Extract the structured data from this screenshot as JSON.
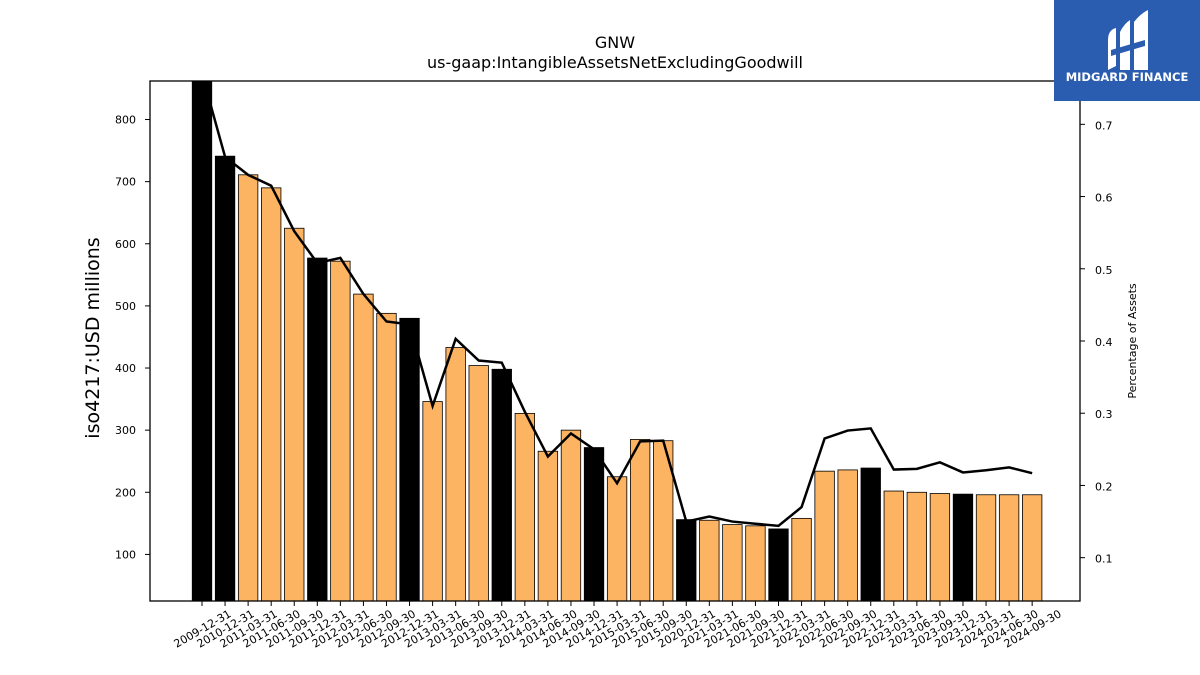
{
  "colors": {
    "annual_bar": "#000000",
    "quarter_bar": "#fdb462",
    "line": "#000000",
    "logo_bg": "#2a5db0",
    "logo_fg": "#ffffff"
  },
  "logo": {
    "text": "MIDGARD FINANCE",
    "icon": "midgard-mark-icon"
  },
  "chart_data": {
    "type": "bar",
    "title": "GNW",
    "subtitle": "us-gaap:IntangibleAssetsNetExcludingGoodwill",
    "ylabel": "iso4217:USD  millions",
    "y2label": "Percentage of Assets",
    "ylim": [
      25,
      862
    ],
    "y2lim": [
      0.04,
      0.76
    ],
    "yticks": [
      100,
      200,
      300,
      400,
      500,
      600,
      700,
      800
    ],
    "y2ticks": [
      0.1,
      0.2,
      0.3,
      0.4,
      0.5,
      0.6,
      0.7
    ],
    "grid": false,
    "categories": [
      "2009-12-31",
      "2010-12-31",
      "2011-03-31",
      "2011-06-30",
      "2011-09-30",
      "2011-12-31",
      "2012-03-31",
      "2012-06-30",
      "2012-09-30",
      "2012-12-31",
      "2013-03-31",
      "2013-06-30",
      "2013-09-30",
      "2013-12-31",
      "2014-03-31",
      "2014-06-30",
      "2014-09-30",
      "2014-12-31",
      "2015-03-31",
      "2015-06-30",
      "2015-09-30",
      "2020-12-31",
      "2021-03-31",
      "2021-06-30",
      "2021-09-30",
      "2021-12-31",
      "2022-03-31",
      "2022-06-30",
      "2022-09-30",
      "2022-12-31",
      "2023-03-31",
      "2023-06-30",
      "2023-09-30",
      "2023-12-31",
      "2024-03-31",
      "2024-06-30",
      "2024-09-30"
    ],
    "annual": [
      true,
      true,
      false,
      false,
      false,
      true,
      false,
      false,
      false,
      true,
      false,
      false,
      false,
      true,
      false,
      false,
      false,
      true,
      false,
      false,
      false,
      true,
      false,
      false,
      false,
      true,
      false,
      false,
      false,
      true,
      false,
      false,
      false,
      true,
      false,
      false,
      false
    ],
    "series": [
      {
        "name": "iso4217:USD  millions",
        "type": "bar",
        "values": [
          862,
          741,
          711,
          690,
          625,
          577,
          572,
          519,
          488,
          480,
          346,
          433,
          404,
          398,
          327,
          266,
          300,
          272,
          225,
          285,
          283,
          156,
          155,
          148,
          146,
          141,
          158,
          234,
          236,
          239,
          202,
          200,
          198,
          197,
          196,
          196,
          196
        ]
      },
      {
        "name": "Percentage of Assets",
        "type": "line",
        "values": [
          0.77,
          0.655,
          0.63,
          0.615,
          0.552,
          0.508,
          0.515,
          0.465,
          0.427,
          0.423,
          0.31,
          0.403,
          0.373,
          0.37,
          0.302,
          0.24,
          0.272,
          0.25,
          0.203,
          0.261,
          0.262,
          0.15,
          0.157,
          0.15,
          0.147,
          0.144,
          0.17,
          0.265,
          0.276,
          0.279,
          0.222,
          0.223,
          0.232,
          0.218,
          0.221,
          0.225,
          0.217
        ]
      }
    ]
  }
}
